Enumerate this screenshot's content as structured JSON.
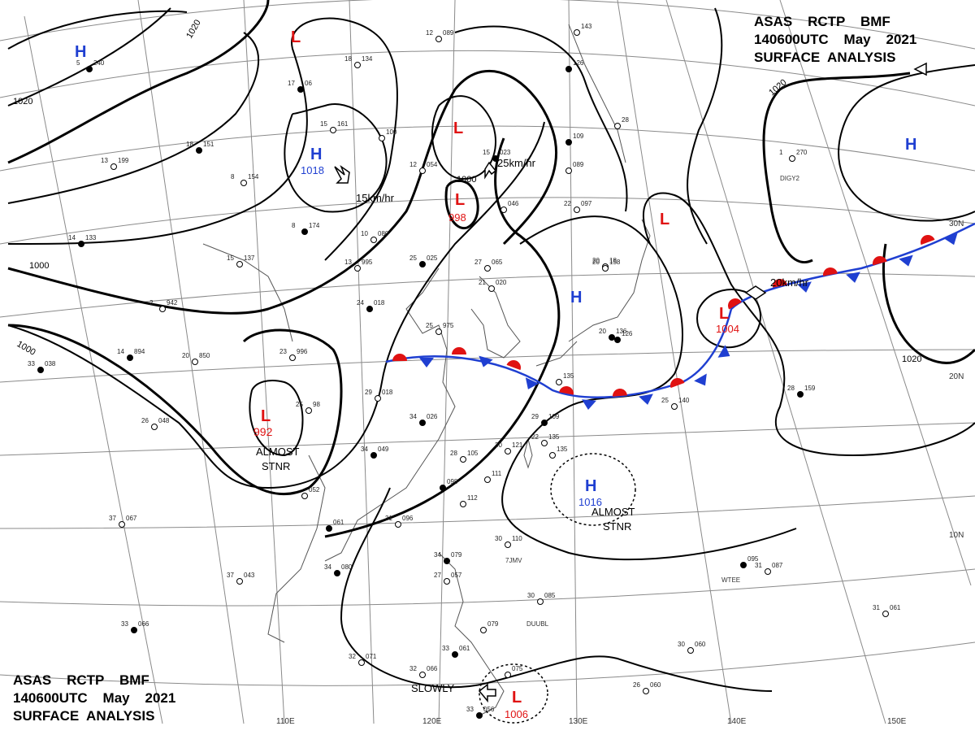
{
  "header": {
    "top": {
      "line1": "ASAS    RCTP    BMF",
      "line2": "140600UTC    May    2021",
      "line3": "SURFACE  ANALYSIS"
    },
    "bottom": {
      "line1": "ASAS    RCTP    BMF",
      "line2": "140600UTC    May    2021",
      "line3": "SURFACE  ANALYSIS"
    }
  },
  "colors": {
    "high": "#1f3fd1",
    "low": "#e01212",
    "cold_front": "#1f3fd1",
    "warm_front": "#e01212",
    "isobar": "#000000",
    "grid": "#8a8a8a",
    "coast": "#555555"
  },
  "longitude_labels": [
    "110E",
    "120E",
    "130E",
    "140E",
    "150E"
  ],
  "latitude_labels": [
    "30N",
    "20N",
    "10N"
  ],
  "isobar_labels": [
    "1020",
    "1020",
    "1000",
    "1000",
    "1020"
  ],
  "pressure_centers": [
    {
      "type": "H",
      "value": ""
    },
    {
      "type": "L",
      "value": ""
    },
    {
      "type": "H",
      "value": "1018"
    },
    {
      "type": "L",
      "value": ""
    },
    {
      "type": "L",
      "value": "998"
    },
    {
      "type": "H",
      "value": ""
    },
    {
      "type": "L",
      "value": ""
    },
    {
      "type": "H",
      "value": ""
    },
    {
      "type": "L",
      "value": "1004"
    },
    {
      "type": "L",
      "value": "992"
    },
    {
      "type": "H",
      "value": "1016"
    },
    {
      "type": "L",
      "value": "1006"
    }
  ],
  "annotations": {
    "move_15": "15km/hr",
    "move_25": "25km/hr",
    "move_20": "20km/hr",
    "stnr_west_1": "ALMOST",
    "stnr_west_2": "STNR",
    "stnr_east_1": "ALMOST",
    "stnr_east_2": "STNR",
    "slowly": "SLOWLY",
    "low_inner": "1000"
  },
  "stations": [
    {
      "id": "s1",
      "temp": "5",
      "pres": "240"
    },
    {
      "id": "s2",
      "temp": "12",
      "pres": "089"
    },
    {
      "id": "s3",
      "temp": "18",
      "pres": "134"
    },
    {
      "id": "s4",
      "temp": "17",
      "pres": "06"
    },
    {
      "id": "s5",
      "temp": "15",
      "pres": "161"
    },
    {
      "id": "s6",
      "temp": "",
      "pres": "100"
    },
    {
      "id": "s7",
      "temp": "18",
      "pres": "151"
    },
    {
      "id": "s8",
      "temp": "13",
      "pres": "199"
    },
    {
      "id": "s9",
      "temp": "8",
      "pres": "154"
    },
    {
      "id": "s10",
      "temp": "8",
      "pres": "174"
    },
    {
      "id": "s11",
      "temp": "10",
      "pres": "080"
    },
    {
      "id": "s12",
      "temp": "12",
      "pres": "054"
    },
    {
      "id": "s13",
      "temp": "15",
      "pres": "023"
    },
    {
      "id": "s14",
      "temp": "",
      "pres": "046"
    },
    {
      "id": "s15",
      "temp": "22",
      "pres": "097"
    },
    {
      "id": "s16",
      "temp": "",
      "pres": "109"
    },
    {
      "id": "s17",
      "temp": "",
      "pres": "089"
    },
    {
      "id": "s18",
      "temp": "",
      "pres": "143"
    },
    {
      "id": "s19",
      "temp": "",
      "pres": "126"
    },
    {
      "id": "s20",
      "temp": "",
      "pres": "28"
    },
    {
      "id": "s21",
      "temp": "1",
      "pres": "270"
    },
    {
      "id": "s22",
      "temp": "14",
      "pres": "133"
    },
    {
      "id": "s23",
      "temp": "15",
      "pres": "137"
    },
    {
      "id": "s24",
      "temp": "13",
      "pres": "995"
    },
    {
      "id": "s25",
      "temp": "25",
      "pres": "025"
    },
    {
      "id": "s26",
      "temp": "27",
      "pres": "065"
    },
    {
      "id": "s27",
      "temp": "2",
      "pres": "942"
    },
    {
      "id": "s28",
      "temp": "24",
      "pres": "018"
    },
    {
      "id": "s29",
      "temp": "21",
      "pres": "020"
    },
    {
      "id": "s30",
      "temp": "20",
      "pres": "18"
    },
    {
      "id": "s31",
      "temp": "14",
      "pres": "894"
    },
    {
      "id": "s32",
      "temp": "20",
      "pres": "850"
    },
    {
      "id": "s33",
      "temp": "23",
      "pres": "996"
    },
    {
      "id": "s34",
      "temp": "33",
      "pres": "038"
    },
    {
      "id": "s35",
      "temp": "25",
      "pres": "975"
    },
    {
      "id": "s36",
      "temp": "29",
      "pres": "018"
    },
    {
      "id": "s37",
      "temp": "34",
      "pres": "026"
    },
    {
      "id": "s38",
      "temp": "26",
      "pres": "048"
    },
    {
      "id": "s39",
      "temp": "25",
      "pres": "98"
    },
    {
      "id": "s40",
      "temp": "34",
      "pres": "049"
    },
    {
      "id": "s41",
      "temp": "28",
      "pres": "105"
    },
    {
      "id": "s42",
      "temp": "30",
      "pres": "121"
    },
    {
      "id": "s43",
      "temp": "29",
      "pres": "109"
    },
    {
      "id": "s44",
      "temp": "",
      "pres": "135"
    },
    {
      "id": "s45",
      "temp": "",
      "pres": "111"
    },
    {
      "id": "s46",
      "temp": "",
      "pres": "098"
    },
    {
      "id": "s47",
      "temp": "",
      "pres": "112"
    },
    {
      "id": "s48",
      "temp": "",
      "pres": "052"
    },
    {
      "id": "s49",
      "temp": "",
      "pres": "061"
    },
    {
      "id": "s50",
      "temp": "31",
      "pres": "096"
    },
    {
      "id": "s51",
      "temp": "37",
      "pres": "067"
    },
    {
      "id": "s52",
      "temp": "34",
      "pres": "080"
    },
    {
      "id": "s53",
      "temp": "37",
      "pres": "043"
    },
    {
      "id": "s54",
      "temp": "30",
      "pres": "110"
    },
    {
      "id": "s55",
      "temp": "34",
      "pres": "079"
    },
    {
      "id": "s56",
      "temp": "27",
      "pres": "057"
    },
    {
      "id": "s57",
      "temp": "30",
      "pres": "085"
    },
    {
      "id": "s58",
      "temp": "33",
      "pres": "066"
    },
    {
      "id": "s59",
      "temp": "32",
      "pres": "071"
    },
    {
      "id": "s60",
      "temp": "32",
      "pres": "066"
    },
    {
      "id": "s61",
      "temp": "33",
      "pres": "061"
    },
    {
      "id": "s62",
      "temp": "",
      "pres": "079"
    },
    {
      "id": "s63",
      "temp": "",
      "pres": "075"
    },
    {
      "id": "s64",
      "temp": "33",
      "pres": "056"
    },
    {
      "id": "s65",
      "temp": "26",
      "pres": "060"
    },
    {
      "id": "s66",
      "temp": "30",
      "pres": "060"
    },
    {
      "id": "s67",
      "temp": "",
      "pres": "095"
    },
    {
      "id": "s68",
      "temp": "31",
      "pres": "087"
    },
    {
      "id": "s69",
      "temp": "31",
      "pres": "061"
    },
    {
      "id": "s70",
      "temp": "28",
      "pres": "159"
    },
    {
      "id": "s71",
      "temp": "25",
      "pres": "140"
    },
    {
      "id": "s72",
      "temp": "20",
      "pres": "158"
    },
    {
      "id": "s73",
      "temp": "",
      "pres": "126"
    },
    {
      "id": "s74",
      "temp": "22",
      "pres": "135"
    },
    {
      "id": "s75",
      "temp": "",
      "pres": "135"
    },
    {
      "id": "s76",
      "temp": "20",
      "pres": "136"
    }
  ],
  "ship_ids": [
    "DIGY2",
    "7JMV",
    "DUUBL",
    "WTEE"
  ]
}
